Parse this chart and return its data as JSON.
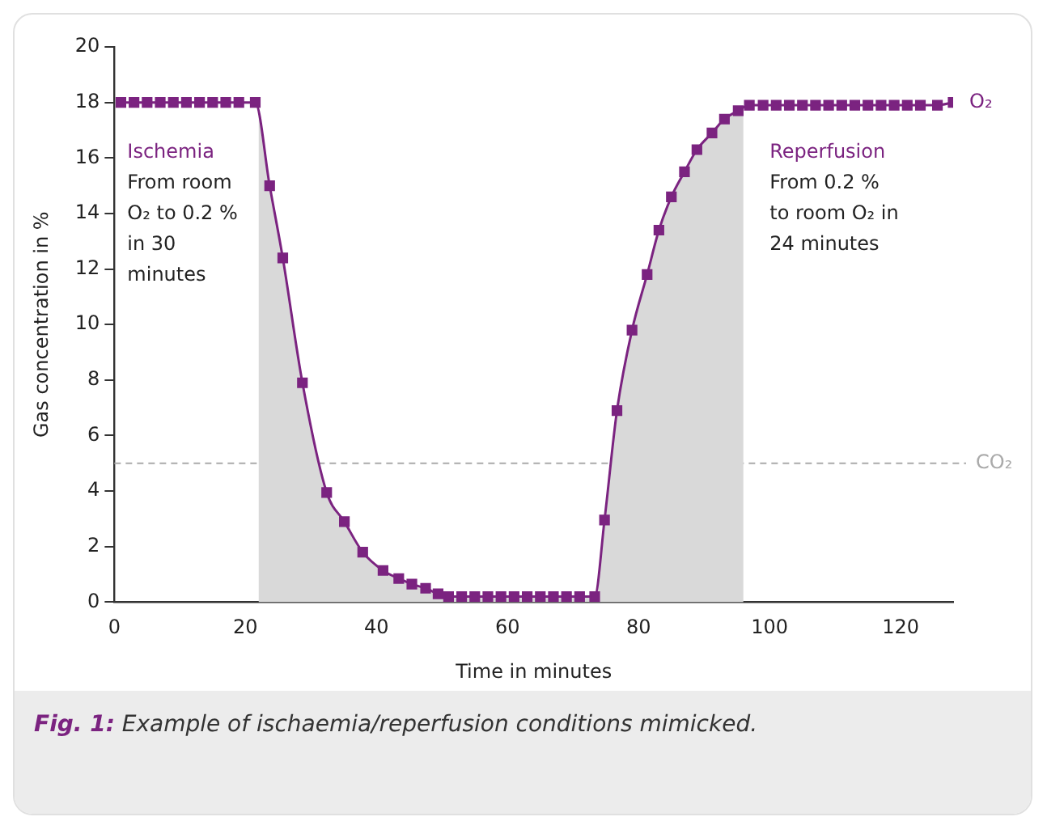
{
  "chart_data": {
    "type": "line",
    "xlabel": "Time in minutes",
    "ylabel": "Gas concentration in %",
    "xlim": [
      0,
      128
    ],
    "xticks": [
      0,
      20,
      40,
      60,
      80,
      100,
      120
    ],
    "ylim": [
      0,
      20
    ],
    "yticks": [
      0,
      2,
      4,
      6,
      8,
      10,
      12,
      14,
      16,
      18,
      20
    ],
    "grid": false,
    "legend": false,
    "marker": "square",
    "line_style": "solid",
    "series": [
      {
        "type": "area",
        "color": "#d9d9d9",
        "marker": "none",
        "x": [
          22,
          23.7,
          25.7,
          28.7,
          32.4,
          35.1,
          37.9,
          41.0,
          43.4,
          45.4,
          47.5,
          49.4,
          51,
          53,
          55,
          57,
          59,
          61,
          63,
          65,
          67,
          69,
          71,
          73.3,
          74.8,
          76.7,
          79.0,
          81.3,
          83.1,
          85.0,
          87.0,
          88.9,
          91.2,
          93.1,
          95.2,
          96
        ],
        "values": [
          17.6,
          15.0,
          12.4,
          7.9,
          3.95,
          2.9,
          1.8,
          1.14,
          0.85,
          0.65,
          0.5,
          0.3,
          0.2,
          0.2,
          0.2,
          0.2,
          0.2,
          0.2,
          0.2,
          0.2,
          0.2,
          0.2,
          0.2,
          0.2,
          2.96,
          6.9,
          9.8,
          11.8,
          13.4,
          14.6,
          15.5,
          16.3,
          16.9,
          17.4,
          17.7,
          17.8
        ]
      },
      {
        "name": "O₂",
        "color": "#7b2380",
        "x": [
          1,
          3,
          5,
          7,
          9,
          11,
          13,
          15,
          17,
          19,
          21.5,
          23.7,
          25.7,
          28.7,
          32.4,
          35.1,
          37.9,
          41.0,
          43.4,
          45.4,
          47.5,
          49.4,
          51,
          53,
          55,
          57,
          59,
          61,
          63,
          65,
          67,
          69,
          71,
          73.3,
          74.8,
          76.7,
          79.0,
          81.3,
          83.1,
          85.0,
          87.0,
          88.9,
          91.2,
          93.1,
          95.2,
          96.9,
          99,
          101,
          103,
          105,
          107,
          109,
          111,
          113,
          115,
          117,
          119,
          121,
          123,
          125.6,
          128
        ],
        "values": [
          18,
          18,
          18,
          18,
          18,
          18,
          18,
          18,
          18,
          18,
          18,
          15.0,
          12.4,
          7.9,
          3.95,
          2.9,
          1.8,
          1.14,
          0.85,
          0.65,
          0.5,
          0.3,
          0.2,
          0.2,
          0.2,
          0.2,
          0.2,
          0.2,
          0.2,
          0.2,
          0.2,
          0.2,
          0.2,
          0.2,
          2.96,
          6.9,
          9.8,
          11.8,
          13.4,
          14.6,
          15.5,
          16.3,
          16.9,
          17.4,
          17.7,
          17.9,
          17.9,
          17.9,
          17.9,
          17.9,
          17.9,
          17.9,
          17.9,
          17.9,
          17.9,
          17.9,
          17.9,
          17.9,
          17.9,
          17.9,
          18
        ]
      }
    ],
    "ref_lines": [
      {
        "axis": "y",
        "value": 5,
        "label": "CO₂",
        "color": "#aaaaaa",
        "line_style": "dashed"
      }
    ],
    "annotations": [
      "Ischemia",
      "From room O₂ to 0.2 % in 30 minutes",
      "Reperfusion",
      "From 0.2 % to room O₂ in 24 minutes",
      "Fig. 1: Example of ischaemia/reperfusion conditions mimicked."
    ]
  }
}
